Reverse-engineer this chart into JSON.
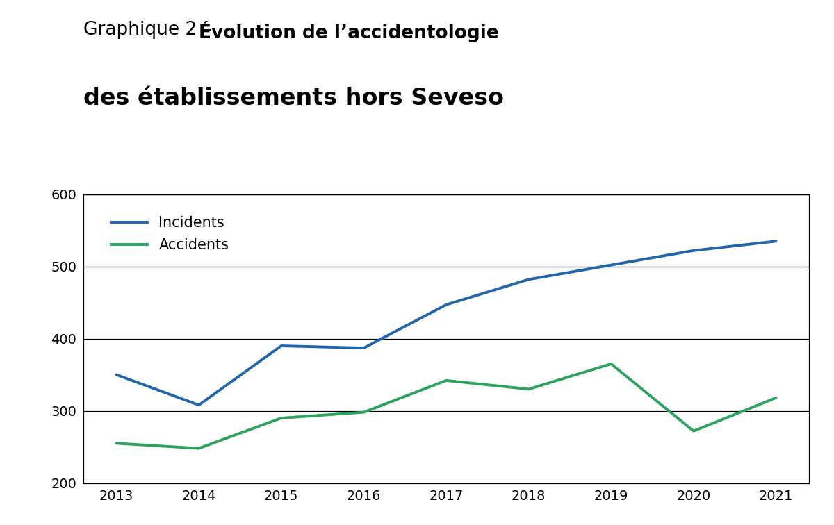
{
  "title_part1": "Graphique 2 – ",
  "title_part2": "Évolution de l’accidentologie",
  "title_line2": "des établissements hors Seveso",
  "years": [
    2013,
    2014,
    2015,
    2016,
    2017,
    2018,
    2019,
    2020,
    2021
  ],
  "incidents": [
    350,
    308,
    390,
    387,
    447,
    482,
    502,
    522,
    535
  ],
  "accidents": [
    255,
    248,
    290,
    298,
    342,
    330,
    365,
    272,
    318
  ],
  "incidents_color": "#2166ac",
  "accidents_color": "#2ca25f",
  "ylim": [
    200,
    600
  ],
  "yticks": [
    200,
    300,
    400,
    500,
    600
  ],
  "xlim": [
    2012.6,
    2021.4
  ],
  "legend_labels": [
    "Incidents",
    "Accidents"
  ],
  "line_width": 2.8,
  "background_color": "#ffffff",
  "grid_color": "#000000",
  "tick_fontsize": 14,
  "legend_fontsize": 15
}
